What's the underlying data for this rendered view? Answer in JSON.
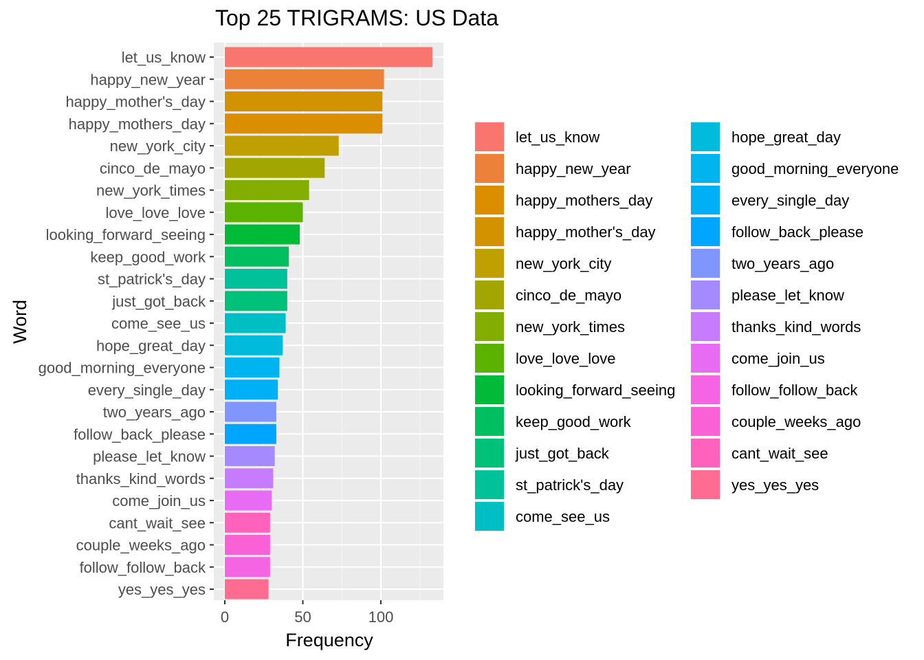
{
  "chart_data": {
    "type": "bar",
    "orientation": "horizontal",
    "title": "Top 25 TRIGRAMS: US Data",
    "xlabel": "Frequency",
    "ylabel": "Word",
    "xlim": [
      0,
      140
    ],
    "xticks": [
      0,
      50,
      100
    ],
    "grid": true,
    "legend_position": "right",
    "bars": [
      {
        "label": "let_us_know",
        "value": 133,
        "color": "#F8766D"
      },
      {
        "label": "happy_new_year",
        "value": 102,
        "color": "#EC8239"
      },
      {
        "label": "happy_mother's_day",
        "value": 101,
        "color": "#D39200"
      },
      {
        "label": "happy_mothers_day",
        "value": 101,
        "color": "#DB8E00"
      },
      {
        "label": "new_york_city",
        "value": 73,
        "color": "#BFA000"
      },
      {
        "label": "cinco_de_mayo",
        "value": 64,
        "color": "#A3A500"
      },
      {
        "label": "new_york_times",
        "value": 54,
        "color": "#83AD00"
      },
      {
        "label": "love_love_love",
        "value": 50,
        "color": "#5BB300"
      },
      {
        "label": "looking_forward_seeing",
        "value": 48,
        "color": "#00BA38"
      },
      {
        "label": "keep_good_work",
        "value": 41,
        "color": "#00BF60"
      },
      {
        "label": "st_patrick's_day",
        "value": 40,
        "color": "#00C19A"
      },
      {
        "label": "just_got_back",
        "value": 40,
        "color": "#00C17A"
      },
      {
        "label": "come_see_us",
        "value": 39,
        "color": "#00BFC4"
      },
      {
        "label": "hope_great_day",
        "value": 37,
        "color": "#00BBDB"
      },
      {
        "label": "good_morning_everyone",
        "value": 35,
        "color": "#00B4EF"
      },
      {
        "label": "every_single_day",
        "value": 34,
        "color": "#00B0F6"
      },
      {
        "label": "two_years_ago",
        "value": 33,
        "color": "#7F96FF"
      },
      {
        "label": "follow_back_please",
        "value": 33,
        "color": "#00A5FF"
      },
      {
        "label": "please_let_know",
        "value": 32,
        "color": "#A58AFF"
      },
      {
        "label": "thanks_kind_words",
        "value": 31,
        "color": "#C77CFF"
      },
      {
        "label": "come_join_us",
        "value": 30,
        "color": "#E76BF3"
      },
      {
        "label": "cant_wait_see",
        "value": 29,
        "color": "#FF62BC"
      },
      {
        "label": "couple_weeks_ago",
        "value": 29,
        "color": "#FB61D7"
      },
      {
        "label": "follow_follow_back",
        "value": 29,
        "color": "#F564E3"
      },
      {
        "label": "yes_yes_yes",
        "value": 28,
        "color": "#FF6C91"
      }
    ],
    "legend": [
      {
        "label": "let_us_know",
        "color": "#F8766D"
      },
      {
        "label": "happy_new_year",
        "color": "#EC8239"
      },
      {
        "label": "happy_mothers_day",
        "color": "#DB8E00"
      },
      {
        "label": "happy_mother's_day",
        "color": "#D39200"
      },
      {
        "label": "new_york_city",
        "color": "#BFA000"
      },
      {
        "label": "cinco_de_mayo",
        "color": "#A3A500"
      },
      {
        "label": "new_york_times",
        "color": "#83AD00"
      },
      {
        "label": "love_love_love",
        "color": "#5BB300"
      },
      {
        "label": "looking_forward_seeing",
        "color": "#00BA38"
      },
      {
        "label": "keep_good_work",
        "color": "#00BF60"
      },
      {
        "label": "just_got_back",
        "color": "#00C17A"
      },
      {
        "label": "st_patrick's_day",
        "color": "#00C19A"
      },
      {
        "label": "come_see_us",
        "color": "#00BFC4"
      },
      {
        "label": "hope_great_day",
        "color": "#00BBDB"
      },
      {
        "label": "good_morning_everyone",
        "color": "#00B4EF"
      },
      {
        "label": "every_single_day",
        "color": "#00B0F6"
      },
      {
        "label": "follow_back_please",
        "color": "#00A5FF"
      },
      {
        "label": "two_years_ago",
        "color": "#7F96FF"
      },
      {
        "label": "please_let_know",
        "color": "#A58AFF"
      },
      {
        "label": "thanks_kind_words",
        "color": "#C77CFF"
      },
      {
        "label": "come_join_us",
        "color": "#E76BF3"
      },
      {
        "label": "follow_follow_back",
        "color": "#F564E3"
      },
      {
        "label": "couple_weeks_ago",
        "color": "#FB61D7"
      },
      {
        "label": "cant_wait_see",
        "color": "#FF62BC"
      },
      {
        "label": "yes_yes_yes",
        "color": "#FF6C91"
      }
    ]
  }
}
